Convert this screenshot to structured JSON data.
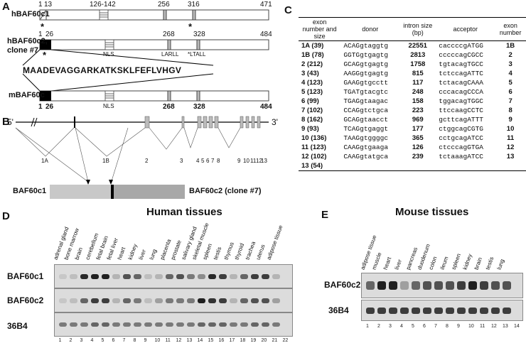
{
  "panels": {
    "a": "A",
    "b": "B",
    "c": "C",
    "d": "D",
    "e": "E"
  },
  "panel_a": {
    "proteins": [
      {
        "name": "hBAF60c1",
        "positions": [
          "1",
          "13",
          "126-142",
          "256",
          "316",
          "471"
        ]
      },
      {
        "name": "hBAF60c2,",
        "name2": "clone #7",
        "positions": [
          "1",
          "26",
          "268",
          "328",
          "484"
        ],
        "motifs": [
          "NLS",
          "LARLL",
          "*LTALL"
        ]
      },
      {
        "name": "mBAF60c",
        "positions": [
          "1",
          "26",
          "268",
          "328",
          "484"
        ],
        "motifs": [
          "NLS"
        ]
      }
    ],
    "sequence": "MAADEVAGGARKATKSKLFEFLVHGV",
    "star": "*"
  },
  "panel_b": {
    "five_prime": "5'",
    "three_prime": "3'",
    "exon_labels": [
      "1A",
      "1B",
      "2",
      "3",
      "4",
      "5",
      "6",
      "7",
      "8",
      "9",
      "10",
      "11",
      "12",
      "13"
    ],
    "variant1": "BAF60c1",
    "variant2": "BAF60c2 (clone #7)"
  },
  "panel_c": {
    "headers": [
      "exon number and size",
      "donor",
      "intron size (bp)",
      "acceptor",
      "exon number"
    ],
    "rows": [
      [
        "1A (39)",
        "ACAGgtaggtg",
        "22551",
        "caccccgATGG",
        "1B"
      ],
      [
        "1B (78)",
        "GGTGgtgagtg",
        "2813",
        "cccccagCGCC",
        "2"
      ],
      [
        "2 (212)",
        "GCAGgtgagtg",
        "1758",
        "tgtacagTGCC",
        "3"
      ],
      [
        "3 (43)",
        "AAGGgtgagtg",
        "815",
        "tctccagATTC",
        "4"
      ],
      [
        "4 (123)",
        "GAAGgtgcctt",
        "117",
        "tctacagCAAA",
        "5"
      ],
      [
        "5 (123)",
        "TGATgtacgtc",
        "248",
        "cccacagCCCA",
        "6"
      ],
      [
        "6 (99)",
        "TGAGgtaagac",
        "158",
        "tggacagTGGC",
        "7"
      ],
      [
        "7 (102)",
        "CCAGgtctgca",
        "223",
        "ttccaagCCTC",
        "8"
      ],
      [
        "8 (162)",
        "GCAGgtaacct",
        "969",
        "gcttcagATTT",
        "9"
      ],
      [
        "9 (93)",
        "TCAGgtgaggt",
        "177",
        "ctggcagCGTG",
        "10"
      ],
      [
        "10 (136)",
        "TAAGgtggggc",
        "365",
        "cctgcagATCC",
        "11"
      ],
      [
        "11 (123)",
        "CAAGgtgaaga",
        "126",
        "ctcccagGTGA",
        "12"
      ],
      [
        "12 (102)",
        "CAAGgtatgca",
        "239",
        "tctaaagATCC",
        "13"
      ],
      [
        "13 (54)",
        "",
        "",
        "",
        ""
      ]
    ]
  },
  "panel_d": {
    "title": "Human tissues",
    "tissues": [
      "adrenal gland",
      "bone marrow",
      "brain",
      "cerebellum",
      "fetal brain",
      "fetal liver",
      "heart",
      "kidney",
      "liver",
      "lung",
      "placenta",
      "prostate",
      "salivary gland",
      "skeletal muscle",
      "spleen",
      "testis",
      "thymus",
      "thyroid",
      "trachea",
      "uterus",
      "adipose tissue"
    ],
    "rows": [
      "BAF60c1",
      "BAF60c2",
      "36B4"
    ],
    "lanes": [
      "1",
      "2",
      "3",
      "4",
      "5",
      "6",
      "7",
      "8",
      "9",
      "10",
      "11",
      "12",
      "13",
      "14",
      "15",
      "16",
      "17",
      "18",
      "19",
      "20",
      "21",
      "22"
    ],
    "c1_intensity": [
      0.1,
      0.15,
      0.9,
      0.95,
      0.95,
      0.2,
      0.7,
      0.6,
      0.15,
      0.2,
      0.6,
      0.7,
      0.5,
      0.4,
      0.9,
      0.8,
      0.2,
      0.6,
      0.8,
      0.8,
      0.2,
      0.0
    ],
    "c2_intensity": [
      0.1,
      0.15,
      0.6,
      0.8,
      0.8,
      0.2,
      0.6,
      0.5,
      0.15,
      0.3,
      0.5,
      0.5,
      0.5,
      0.95,
      0.85,
      0.8,
      0.2,
      0.6,
      0.7,
      0.7,
      0.3,
      0.0
    ],
    "b4_intensity": [
      0.5,
      0.5,
      0.5,
      0.6,
      0.6,
      0.5,
      0.5,
      0.5,
      0.5,
      0.5,
      0.5,
      0.5,
      0.5,
      0.6,
      0.6,
      0.6,
      0.5,
      0.5,
      0.6,
      0.6,
      0.5,
      0.0
    ]
  },
  "panel_e": {
    "title": "Mouse tissues",
    "tissues": [
      "adipose tissue",
      "muscle",
      "heart",
      "liver",
      "pancreas",
      "duodenum",
      "colon",
      "ileum",
      "spleen",
      "kidney",
      "brain",
      "testis",
      "lung"
    ],
    "rows": [
      "BAF60c2",
      "36B4"
    ],
    "lanes": [
      "1",
      "2",
      "3",
      "4",
      "5",
      "6",
      "7",
      "8",
      "9",
      "10",
      "11",
      "12",
      "13",
      "14"
    ],
    "c2_intensity": [
      0.6,
      0.95,
      0.95,
      0.3,
      0.6,
      0.7,
      0.7,
      0.7,
      0.8,
      0.95,
      0.8,
      0.7,
      0.7,
      0.0
    ],
    "b4_intensity": [
      0.8,
      0.8,
      0.8,
      0.8,
      0.8,
      0.8,
      0.8,
      0.8,
      0.8,
      0.8,
      0.8,
      0.8,
      0.8,
      0.0
    ]
  }
}
